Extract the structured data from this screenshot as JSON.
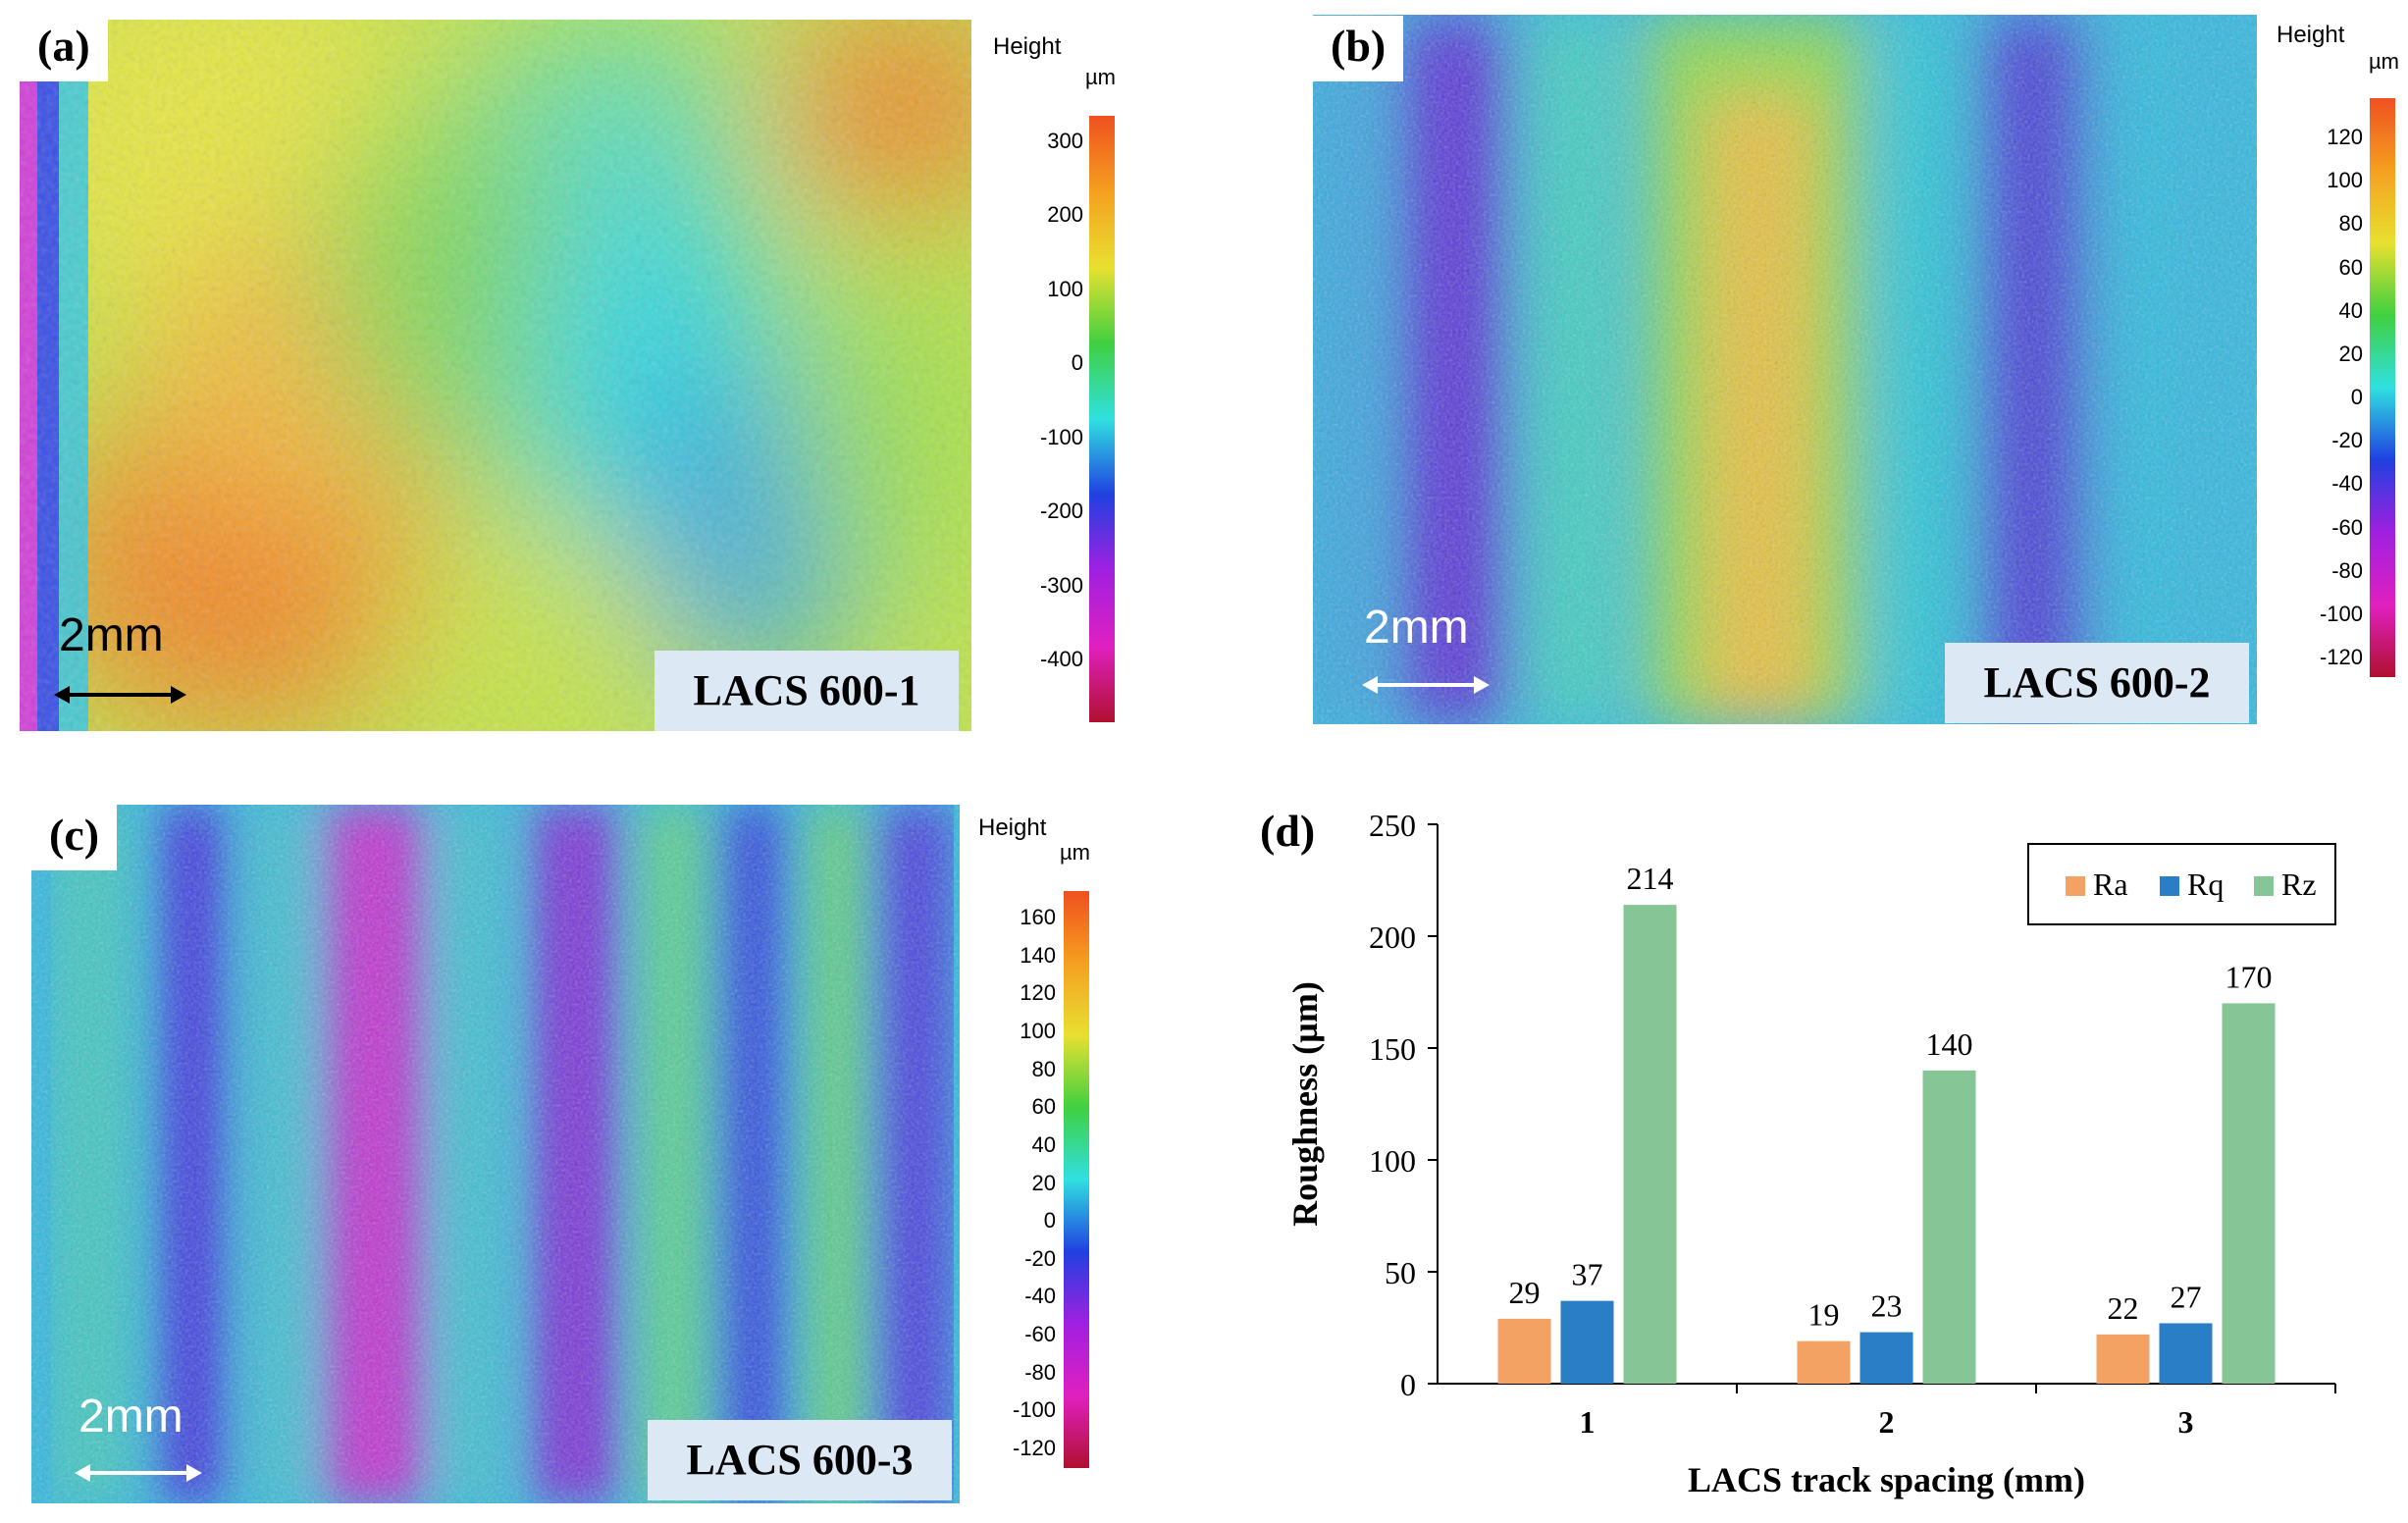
{
  "panels": {
    "a": {
      "label": "(a)",
      "sample": "LACS 600-1",
      "scale": "2mm",
      "colorbar": {
        "title": "Height",
        "unit": "µm",
        "ticks": [
          "300",
          "200",
          "100",
          "0",
          "-100",
          "-200",
          "-300",
          "-400"
        ]
      }
    },
    "b": {
      "label": "(b)",
      "sample": "LACS 600-2",
      "scale": "2mm",
      "colorbar": {
        "title": "Height",
        "unit": "µm",
        "ticks": [
          "120",
          "100",
          "80",
          "60",
          "40",
          "20",
          "0",
          "-20",
          "-40",
          "-60",
          "-80",
          "-100",
          "-120"
        ]
      }
    },
    "c": {
      "label": "(c)",
      "sample": "LACS 600-3",
      "scale": "2mm",
      "colorbar": {
        "title": "Height",
        "unit": "µm",
        "ticks": [
          "160",
          "140",
          "120",
          "100",
          "80",
          "60",
          "40",
          "20",
          "0",
          "-20",
          "-40",
          "-60",
          "-80",
          "-100",
          "-120"
        ]
      }
    },
    "d": {
      "label": "(d)"
    }
  },
  "colors": {
    "Ra": "#f4a264",
    "Rq": "#2a7ec6",
    "Rz": "#86c595",
    "sample_box": "#dce9f5"
  },
  "chart_data": {
    "type": "bar",
    "title": "",
    "xlabel": "LACS track spacing (mm)",
    "ylabel": "Roughness (µm)",
    "categories": [
      "1",
      "2",
      "3"
    ],
    "series": [
      {
        "name": "Ra",
        "values": [
          29,
          19,
          22
        ]
      },
      {
        "name": "Rq",
        "values": [
          37,
          23,
          27
        ]
      },
      {
        "name": "Rz",
        "values": [
          214,
          140,
          170
        ]
      }
    ],
    "ylim": [
      0,
      250
    ],
    "yticks": [
      "0",
      "50",
      "100",
      "150",
      "200",
      "250"
    ],
    "legend": "top-right",
    "grid": false
  }
}
